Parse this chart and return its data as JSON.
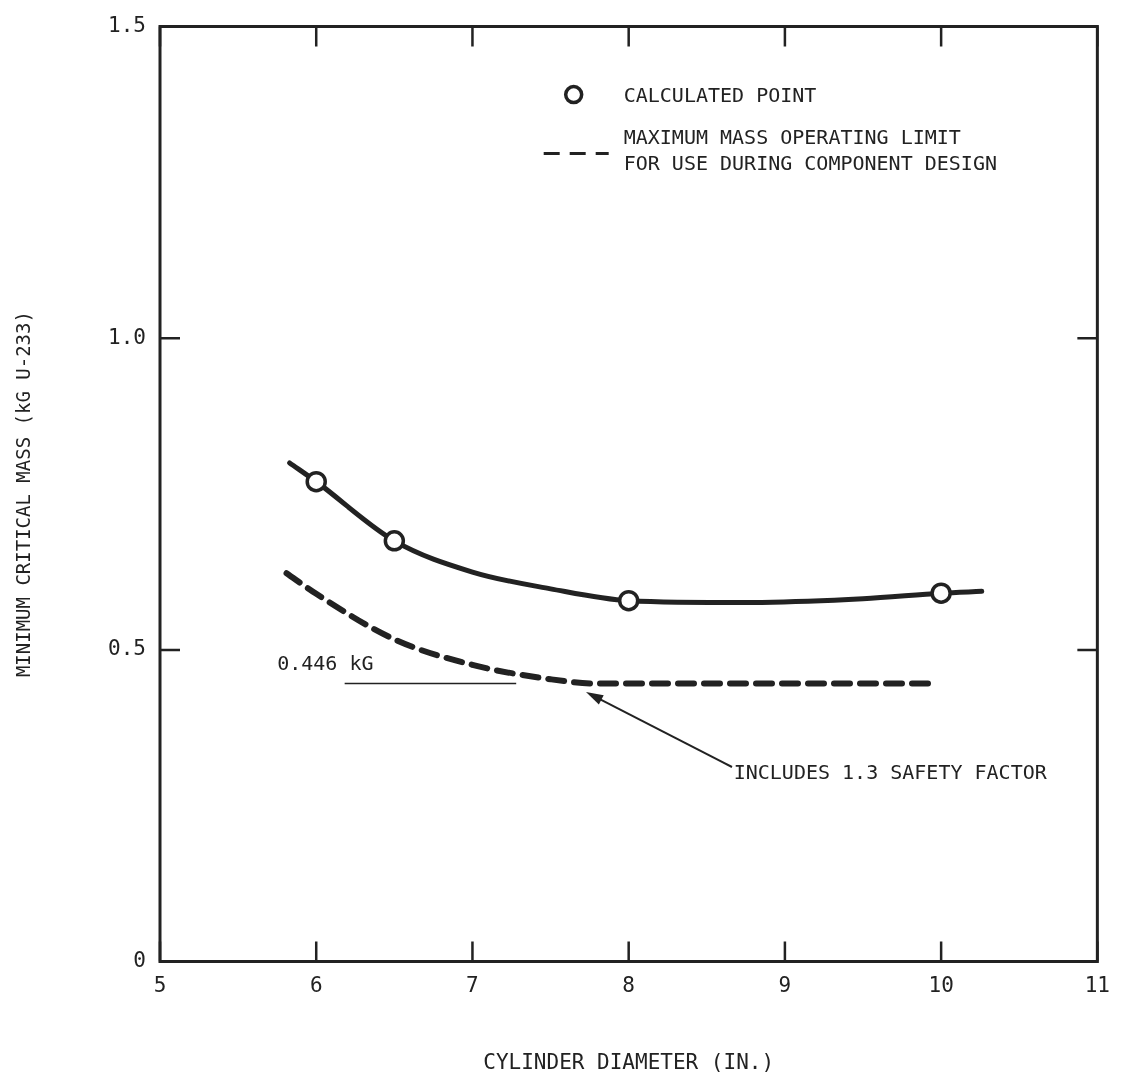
{
  "chart_data": {
    "type": "line",
    "xlabel": "CYLINDER DIAMETER (IN.)",
    "ylabel": "MINIMUM CRITICAL MASS (kG U-233)",
    "xlim": [
      5,
      11
    ],
    "xticks": [
      5,
      6,
      7,
      8,
      9,
      10,
      11
    ],
    "ylim": [
      0,
      1.5
    ],
    "yticks": [
      0,
      {
        "value": 0.5,
        "label": "0.5"
      },
      {
        "value": 1,
        "label": "1.0"
      },
      {
        "value": 1.5,
        "label": "1.5"
      }
    ],
    "grid": false,
    "legend": "top right",
    "series": [
      {
        "type": "scatter",
        "name": "CALCULATED POINT",
        "color": "#222222",
        "marker": "circle",
        "x": [
          6,
          6.5,
          8,
          10
        ],
        "values": [
          0.77,
          0.675,
          0.579,
          0.591
        ]
      },
      {
        "type": "line",
        "color": "#222222",
        "marker": "none",
        "line_style": "solid",
        "x": [
          5.83,
          6,
          6.5,
          7,
          7.5,
          8,
          8.75,
          9.5,
          10,
          10.26
        ],
        "values": [
          0.8,
          0.77,
          0.675,
          0.625,
          0.598,
          0.579,
          0.576,
          0.582,
          0.591,
          0.594
        ]
      },
      {
        "type": "line",
        "name": "MAXIMUM MASS OPERATING LIMIT\nFOR USE DURING COMPONENT DESIGN",
        "color": "#222222",
        "marker": "none",
        "line_style": "dashed",
        "x": [
          5.81,
          6,
          6.5,
          7,
          7.5,
          7.8,
          8.5,
          9.2,
          9.94
        ],
        "values": [
          0.623,
          0.59,
          0.517,
          0.476,
          0.453,
          0.446,
          0.446,
          0.446,
          0.446
        ]
      }
    ],
    "ref_lines": [
      {
        "axis": "y",
        "value": 0.446,
        "label": "0.446 kG",
        "color": "#222222",
        "line_style": "solid"
      }
    ],
    "annotations": [
      "INCLUDES 1.3 SAFETY FACTOR"
    ]
  }
}
